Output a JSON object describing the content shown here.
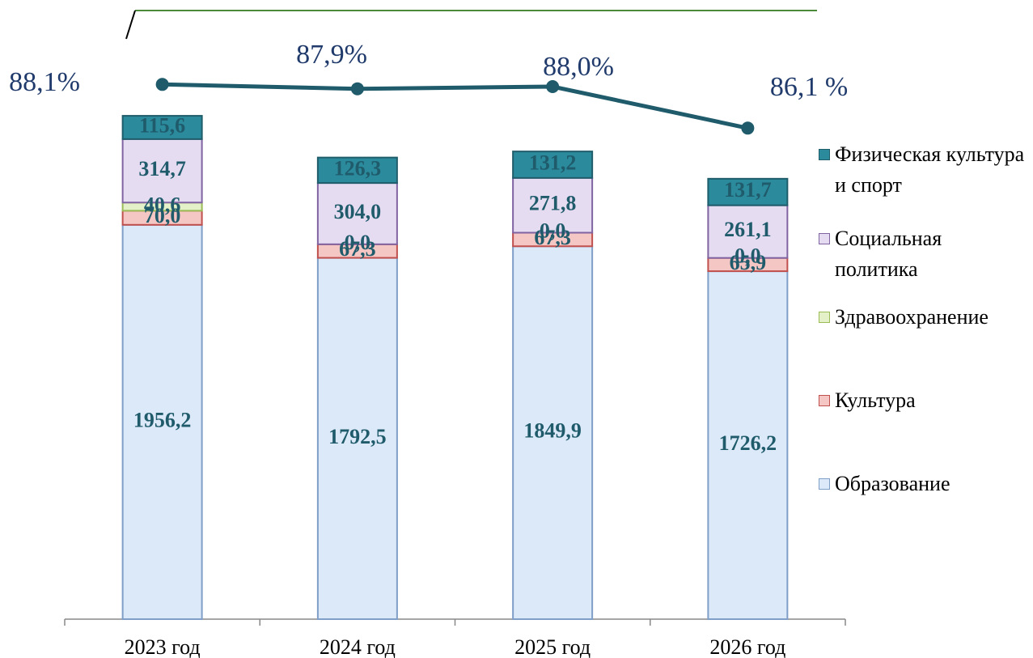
{
  "chart_data": {
    "type": "stacked_bar_line",
    "categories": [
      "2023 год",
      "2024 год",
      "2025 год",
      "2026 год"
    ],
    "ylim": [
      0,
      2650
    ],
    "y2lim": [
      84,
      90
    ],
    "series": [
      {
        "name": "Образование",
        "color": "#dce9f8",
        "values": [
          1956.2,
          1792.5,
          1849.9,
          1726.2
        ],
        "value_labels": [
          "1956,2",
          "1792,5",
          "1849,9",
          "1726,2"
        ]
      },
      {
        "name": "Культура",
        "color": "#f4c6c4",
        "values": [
          70.0,
          67.3,
          67.3,
          65.9
        ],
        "value_labels": [
          "70,0",
          "67,3",
          "67,3",
          "65,9"
        ]
      },
      {
        "name": "Здравоохранение",
        "color": "#e4f0c8",
        "values": [
          40.6,
          0.0,
          0.0,
          0.0
        ],
        "value_labels": [
          "40,6",
          "0,0",
          "0,0",
          "0,0"
        ]
      },
      {
        "name": "Социальная политика",
        "color": "#e6dcf2",
        "values": [
          314.7,
          304.0,
          271.8,
          261.1
        ],
        "value_labels": [
          "314,7",
          "304,0",
          "271,8",
          "261,1"
        ]
      },
      {
        "name": "Физическая культура и спорт",
        "color": "#2b8a9c",
        "values": [
          115.6,
          126.3,
          131.2,
          131.7
        ],
        "value_labels": [
          "115,6",
          "126,3",
          "131,2",
          "131,7"
        ]
      },
      {
        "type": "line",
        "axis": "y2",
        "color": "#1f5b6b",
        "values": [
          88.1,
          87.9,
          88.0,
          86.1
        ],
        "value_labels": [
          "88,1%",
          "87,9%",
          "88,0%",
          "86,1 %"
        ]
      }
    ]
  }
}
